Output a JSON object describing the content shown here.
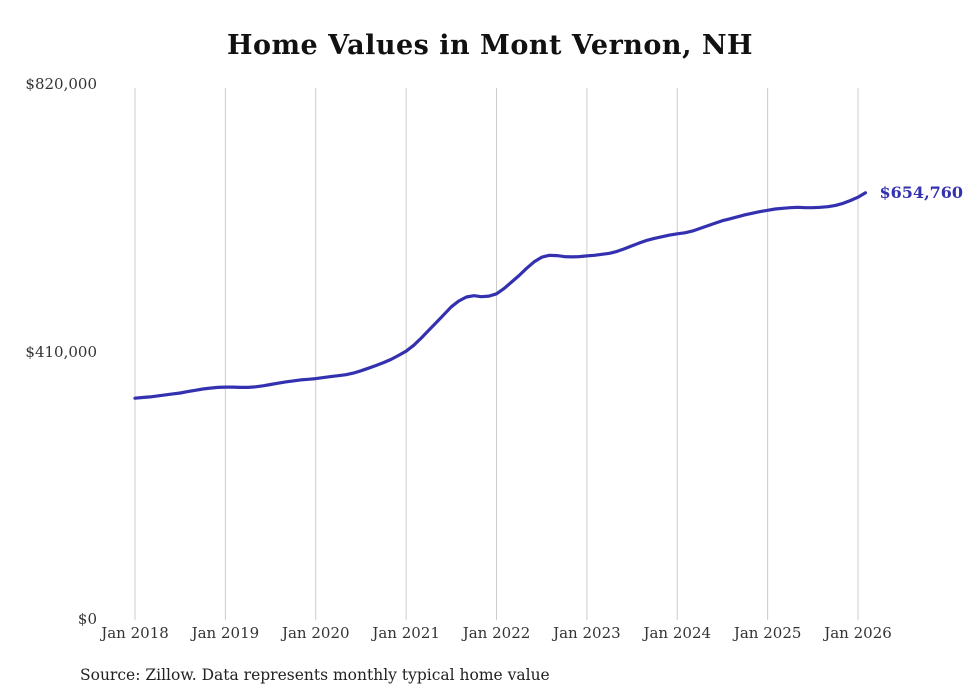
{
  "title": "Home Values in Mont Vernon, NH",
  "end_label": "$654,760",
  "source_note": "Source: Zillow. Data represents monthly typical home value",
  "colors": {
    "line": "#3431b0",
    "grid": "#cccccc",
    "text": "#333333",
    "title": "#111111",
    "end_label": "#3431b0"
  },
  "chart_data": {
    "type": "line",
    "title": "Home Values in Mont Vernon, NH",
    "series_name": "Typical home value (monthly)",
    "x_start": "Jan 2018",
    "x_interval": "monthly",
    "x_tick_labels": [
      "Jan 2018",
      "Jan 2019",
      "Jan 2020",
      "Jan 2021",
      "Jan 2022",
      "Jan 2023",
      "Jan 2024",
      "Jan 2025",
      "Jan 2026"
    ],
    "y_ticks": [
      {
        "label": "$0",
        "value": 0
      },
      {
        "label": "$410,000",
        "value": 410000
      },
      {
        "label": "$820,000",
        "value": 820000
      }
    ],
    "ylim": [
      0,
      820000
    ],
    "grid": "vertical-only",
    "legend": "none",
    "final_value": 654760,
    "values": [
      340000,
      341000,
      342000,
      343500,
      345000,
      346500,
      348000,
      350000,
      352000,
      354000,
      355500,
      356500,
      357000,
      357000,
      356500,
      356500,
      357500,
      359000,
      361000,
      363000,
      365000,
      366500,
      368000,
      369000,
      370000,
      371500,
      373000,
      374500,
      376000,
      378500,
      382000,
      386000,
      390000,
      394500,
      399500,
      405500,
      412000,
      421000,
      432000,
      444000,
      456000,
      468000,
      480000,
      489000,
      495000,
      497000,
      495500,
      496500,
      500000,
      508000,
      518000,
      528000,
      539000,
      549000,
      556000,
      559000,
      558500,
      557000,
      556500,
      557000,
      558000,
      559000,
      560500,
      562000,
      565000,
      569000,
      573500,
      578000,
      582000,
      585000,
      587500,
      590000,
      592000,
      593500,
      596000,
      600000,
      604000,
      608000,
      612000,
      615000,
      618000,
      621000,
      623500,
      626000,
      628000,
      630000,
      631000,
      632000,
      632500,
      632000,
      632000,
      632500,
      633500,
      635500,
      638500,
      643000,
      648000,
      654760
    ]
  }
}
